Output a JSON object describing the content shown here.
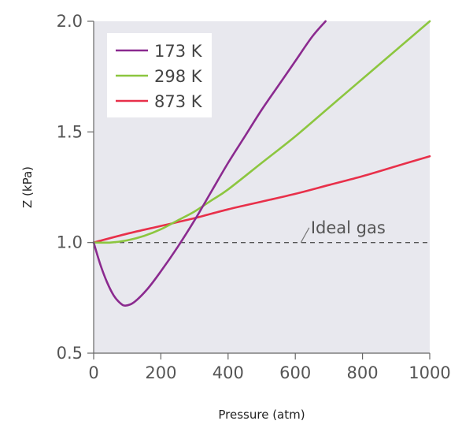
{
  "chart_data": {
    "type": "line",
    "xlabel": "Pressure (atm)",
    "ylabel": "Z (kPa)",
    "xlim": [
      0,
      1000
    ],
    "ylim": [
      0.5,
      2.0
    ],
    "xticks": [
      0,
      200,
      400,
      600,
      800,
      1000
    ],
    "yticks": [
      0.5,
      1.0,
      1.5,
      2.0
    ],
    "xtick_labels": [
      "0",
      "200",
      "400",
      "600",
      "800",
      "1000"
    ],
    "ytick_labels": [
      "0.5",
      "1.0",
      "1.5",
      "2.0"
    ],
    "grid": false,
    "legend_position": "top-left",
    "background_color": "#e8e8ee",
    "series": [
      {
        "name": "173 K",
        "color": "#8b2a8f",
        "x": [
          0,
          20,
          40,
          60,
          80,
          95,
          120,
          160,
          200,
          250,
          300,
          350,
          400,
          450,
          500,
          550,
          600,
          650,
          690
        ],
        "y": [
          1.0,
          0.9,
          0.82,
          0.76,
          0.725,
          0.715,
          0.73,
          0.79,
          0.87,
          0.98,
          1.1,
          1.23,
          1.36,
          1.48,
          1.6,
          1.71,
          1.82,
          1.93,
          2.0
        ]
      },
      {
        "name": "298 K",
        "color": "#8cc63f",
        "x": [
          0,
          50,
          100,
          150,
          200,
          250,
          300,
          350,
          400,
          500,
          600,
          700,
          800,
          900,
          1000
        ],
        "y": [
          1.0,
          1.0,
          1.01,
          1.03,
          1.06,
          1.1,
          1.14,
          1.19,
          1.24,
          1.36,
          1.48,
          1.61,
          1.74,
          1.87,
          2.0
        ]
      },
      {
        "name": "873 K",
        "color": "#e8304a",
        "x": [
          0,
          100,
          200,
          300,
          400,
          500,
          600,
          700,
          800,
          900,
          1000
        ],
        "y": [
          1.0,
          1.04,
          1.075,
          1.11,
          1.15,
          1.185,
          1.22,
          1.26,
          1.3,
          1.345,
          1.39
        ]
      }
    ],
    "reference_line": {
      "label": "Ideal gas",
      "y": 1.0,
      "color": "#555555",
      "style": "dashed"
    },
    "annotations": [
      {
        "text": "Ideal gas",
        "x": 660,
        "y": 1.06,
        "points_to_x": 640,
        "points_to_y": 1.0
      }
    ]
  }
}
